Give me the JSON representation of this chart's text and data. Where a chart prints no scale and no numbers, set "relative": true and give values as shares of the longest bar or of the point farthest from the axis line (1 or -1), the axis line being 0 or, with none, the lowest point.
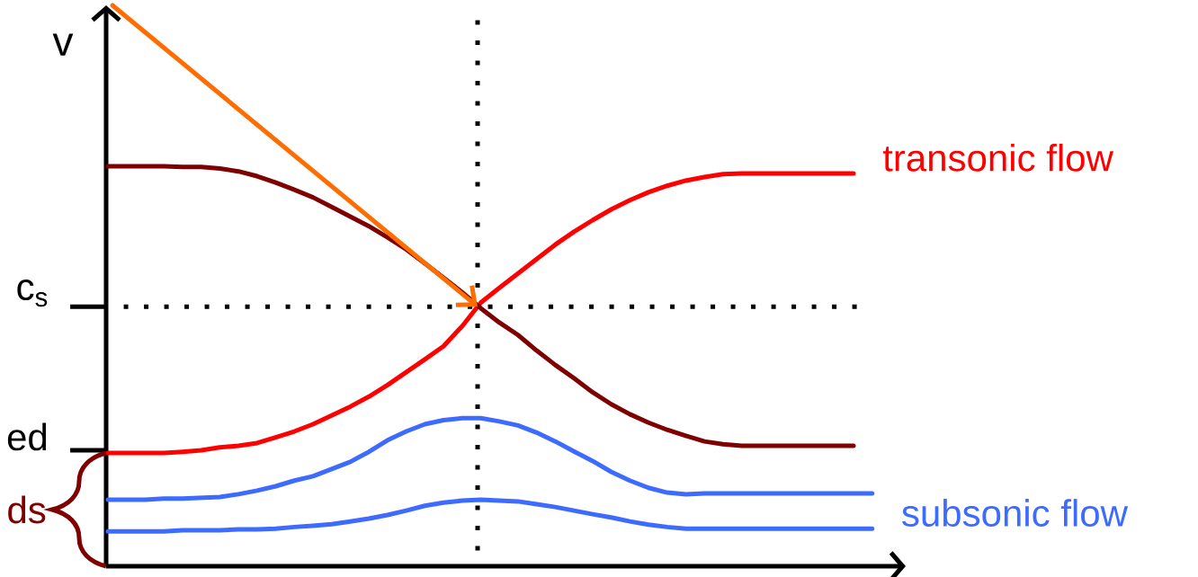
{
  "chart_data": {
    "type": "line",
    "relative": true,
    "ylabel": "v",
    "categories": [
      null,
      null,
      null,
      null,
      null,
      null,
      null,
      null,
      null,
      null,
      null,
      null,
      null,
      null,
      null,
      null,
      null,
      null,
      null,
      null,
      null,
      null,
      null,
      null,
      null,
      null,
      null,
      null,
      null,
      null,
      null,
      null,
      null,
      null,
      null,
      null,
      null,
      null,
      null,
      null,
      null,
      null
    ],
    "series": [
      {
        "name": "transonic flow",
        "color": "#ff0000",
        "values": [
          0.283,
          0.283,
          0.283,
          0.283,
          0.286,
          0.29,
          0.297,
          0.301,
          0.308,
          0.322,
          0.337,
          0.355,
          0.377,
          0.399,
          0.424,
          0.453,
          0.485,
          0.517,
          0.55,
          0.6,
          0.659,
          0.696,
          0.732,
          0.768,
          0.804,
          0.836,
          0.865,
          0.892,
          0.915,
          0.935,
          0.951,
          0.964,
          0.973,
          0.98,
          0.982,
          0.982,
          0.982,
          0.982,
          0.982,
          0.982,
          0.982,
          null
        ]
      },
      {
        "color": "#7f0000",
        "values": [
          1.0,
          1.0,
          1.0,
          1.0,
          0.998,
          0.998,
          0.994,
          0.987,
          0.975,
          0.959,
          0.941,
          0.922,
          0.898,
          0.874,
          0.85,
          0.822,
          0.792,
          0.757,
          0.721,
          0.685,
          0.645,
          0.609,
          0.578,
          0.539,
          0.503,
          0.47,
          0.435,
          0.405,
          0.38,
          0.359,
          0.341,
          0.326,
          0.312,
          0.305,
          0.301,
          0.301,
          0.301,
          0.301,
          0.301,
          0.301,
          0.301,
          null
        ]
      },
      {
        "color": "#3d6bff",
        "values": [
          0.166,
          0.166,
          0.166,
          0.169,
          0.169,
          0.171,
          0.173,
          0.18,
          0.189,
          0.2,
          0.214,
          0.225,
          0.243,
          0.261,
          0.286,
          0.315,
          0.337,
          0.355,
          0.365,
          0.37,
          0.37,
          0.362,
          0.352,
          0.334,
          0.312,
          0.287,
          0.263,
          0.236,
          0.214,
          0.196,
          0.184,
          0.18,
          0.182,
          0.182,
          0.182,
          0.182,
          0.182,
          0.182,
          0.182,
          0.182,
          0.182,
          0.182
        ]
      },
      {
        "name": "subsonic flow",
        "color": "#3d6bff",
        "values": [
          0.087,
          0.087,
          0.087,
          0.087,
          0.09,
          0.09,
          0.09,
          0.092,
          0.092,
          0.094,
          0.098,
          0.101,
          0.105,
          0.112,
          0.119,
          0.128,
          0.139,
          0.151,
          0.159,
          0.164,
          0.166,
          0.164,
          0.162,
          0.155,
          0.148,
          0.139,
          0.13,
          0.122,
          0.112,
          0.104,
          0.098,
          0.094,
          0.094,
          0.094,
          0.094,
          0.094,
          0.094,
          0.094,
          0.094,
          0.094,
          0.094,
          0.094
        ]
      }
    ],
    "ref_lines": [
      {
        "axis": "y",
        "value": 0.649,
        "label": "c$_{s}$",
        "line_style": "dotted"
      },
      {
        "axis": "y",
        "value": 0.29,
        "label": "ed"
      }
    ],
    "annotations": [
      "ds"
    ]
  }
}
